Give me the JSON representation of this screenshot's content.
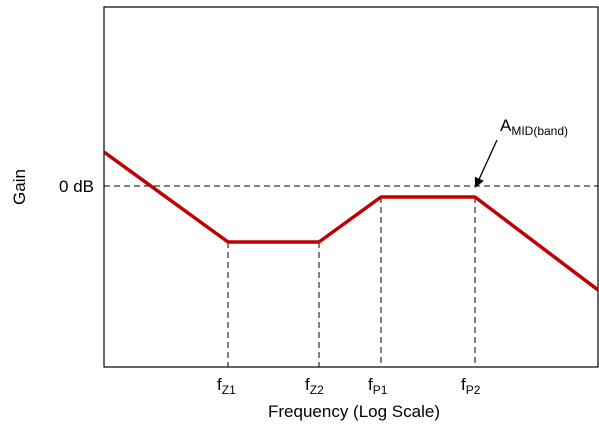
{
  "axes": {
    "x_label": "Frequency (Log Scale)",
    "y_label": "Gain",
    "zero_label": "0 dB"
  },
  "freq_labels": [
    {
      "main": "f",
      "sub": "Z1"
    },
    {
      "main": "f",
      "sub": "Z2"
    },
    {
      "main": "f",
      "sub": "P1"
    },
    {
      "main": "f",
      "sub": "P2"
    }
  ],
  "annotation": {
    "main": "A",
    "sub": "MID(band)"
  },
  "colors": {
    "response_curve": "#c00000",
    "axes": "#000000",
    "guides": "#000000"
  }
}
